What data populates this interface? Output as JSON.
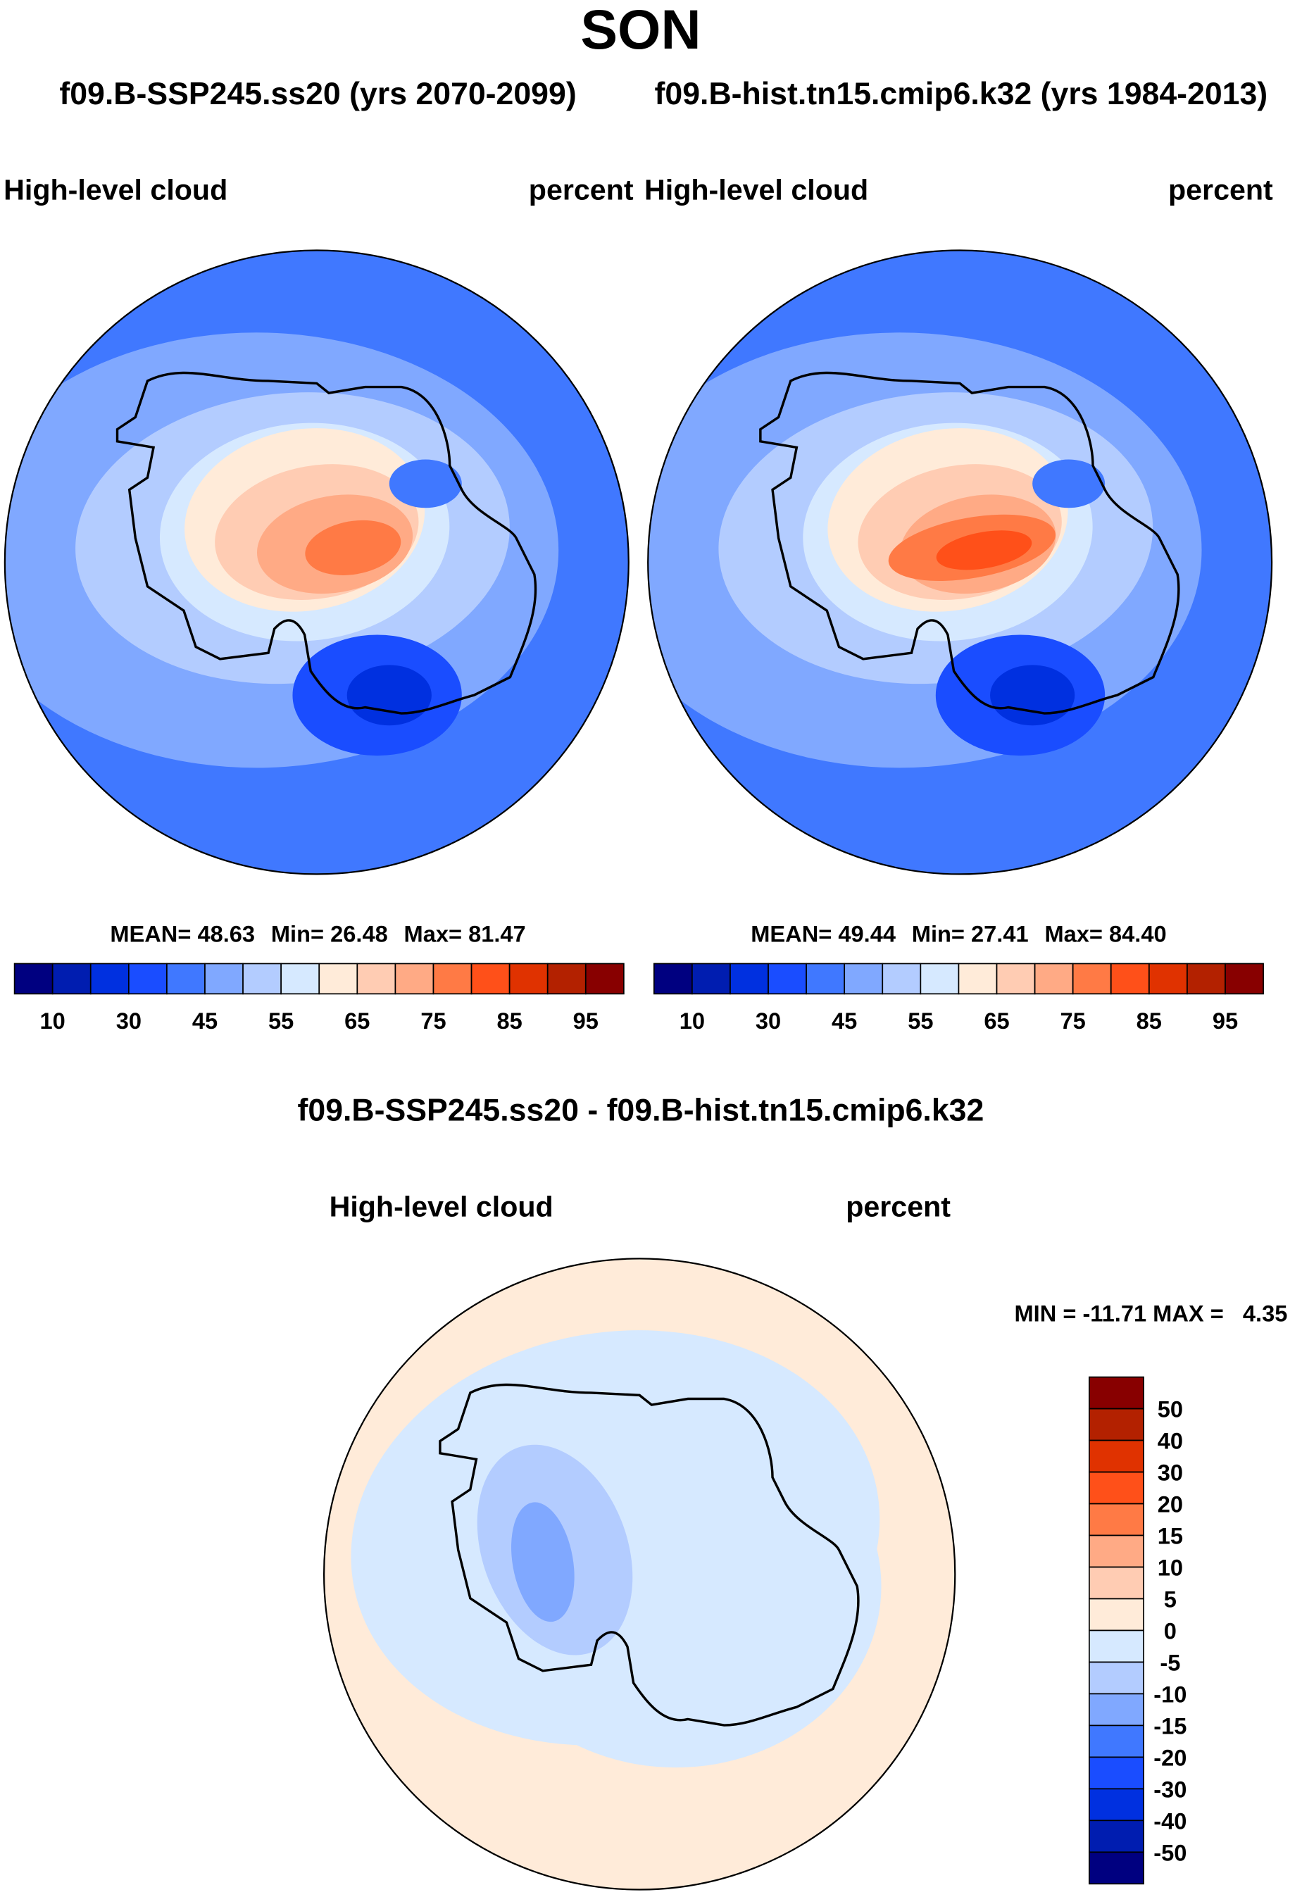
{
  "title": "SON",
  "subtitle_left": "f09.B-SSP245.ss20 (yrs 2070-2099)",
  "subtitle_right": "f09.B-hist.tn15.cmip6.k32 (yrs 1984-2013)",
  "colors": [
    "#000080",
    "#001db0",
    "#0030e0",
    "#1a4dff",
    "#4078ff",
    "#80a8ff",
    "#b3ccff",
    "#d6e9ff",
    "#ffebd9",
    "#ffccb3",
    "#ffaa85",
    "#ff7a45",
    "#ff5019",
    "#e03200",
    "#b32100",
    "#880000"
  ],
  "chart_data": [
    {
      "type": "heatmap",
      "projection": "south-polar-stereographic",
      "variable": "High-level cloud",
      "units": "percent",
      "stats": {
        "mean_label": "MEAN=",
        "mean": "48.63",
        "min_label": "Min=",
        "min": "26.48",
        "max_label": "Max=",
        "max": "81.47"
      },
      "colorbar_labels": [
        "10",
        "30",
        "45",
        "55",
        "65",
        "75",
        "85",
        "95"
      ]
    },
    {
      "type": "heatmap",
      "projection": "south-polar-stereographic",
      "variable": "High-level cloud",
      "units": "percent",
      "stats": {
        "mean_label": "MEAN=",
        "mean": "49.44",
        "min_label": "Min=",
        "min": "27.41",
        "max_label": "Max=",
        "max": "84.40"
      },
      "colorbar_labels": [
        "10",
        "30",
        "45",
        "55",
        "65",
        "75",
        "85",
        "95"
      ]
    },
    {
      "type": "heatmap",
      "projection": "south-polar-stereographic",
      "title": "f09.B-SSP245.ss20 - f09.B-hist.tn15.cmip6.k32",
      "variable": "High-level cloud",
      "units": "percent",
      "stats_text": "MIN = -11.71 MAX =   4.35",
      "colorbar_labels": [
        "50",
        "40",
        "30",
        "20",
        "15",
        "10",
        "5",
        "0",
        "-5",
        "-10",
        "-15",
        "-20",
        "-30",
        "-40",
        "-50"
      ]
    }
  ]
}
